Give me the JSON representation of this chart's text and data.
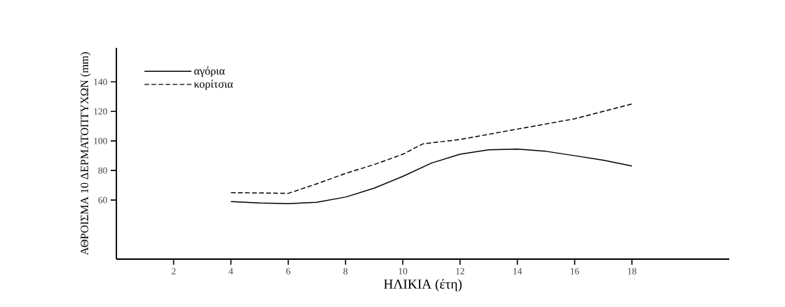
{
  "chart_data": {
    "type": "line",
    "xlabel": "ΗΛΙΚΙΑ (έτη)",
    "ylabel": "ΑΘΡΟΙΣΜΑ 10 ΔΕΡΜΑΤΟΠΤΥΧΩΝ (mm)",
    "xlim": [
      0,
      21.4
    ],
    "ylim": [
      20,
      163
    ],
    "xticks": [
      2,
      4,
      6,
      8,
      10,
      12,
      14,
      16,
      18
    ],
    "yticks": [
      60,
      80,
      100,
      120,
      140
    ],
    "legend": "top left",
    "grid": false,
    "marker": "none",
    "series": [
      {
        "name": "αγόρια",
        "color": "#000000",
        "line_style": "solid",
        "x": [
          4,
          5,
          6,
          7,
          8,
          9,
          10,
          11,
          12,
          13,
          14,
          15,
          16,
          17,
          18
        ],
        "values": [
          59,
          58,
          57.5,
          58.5,
          62,
          68,
          76,
          85,
          91,
          94,
          94.5,
          93,
          90,
          87,
          83
        ]
      },
      {
        "name": "κορίτσια",
        "color": "#000000",
        "line_style": "dashed",
        "x": [
          4,
          5,
          6,
          7,
          8,
          9,
          10,
          10.7,
          12,
          14,
          16,
          18
        ],
        "values": [
          65,
          64.8,
          64.5,
          71,
          78,
          84,
          91,
          98,
          101,
          108,
          115,
          125
        ]
      }
    ]
  }
}
